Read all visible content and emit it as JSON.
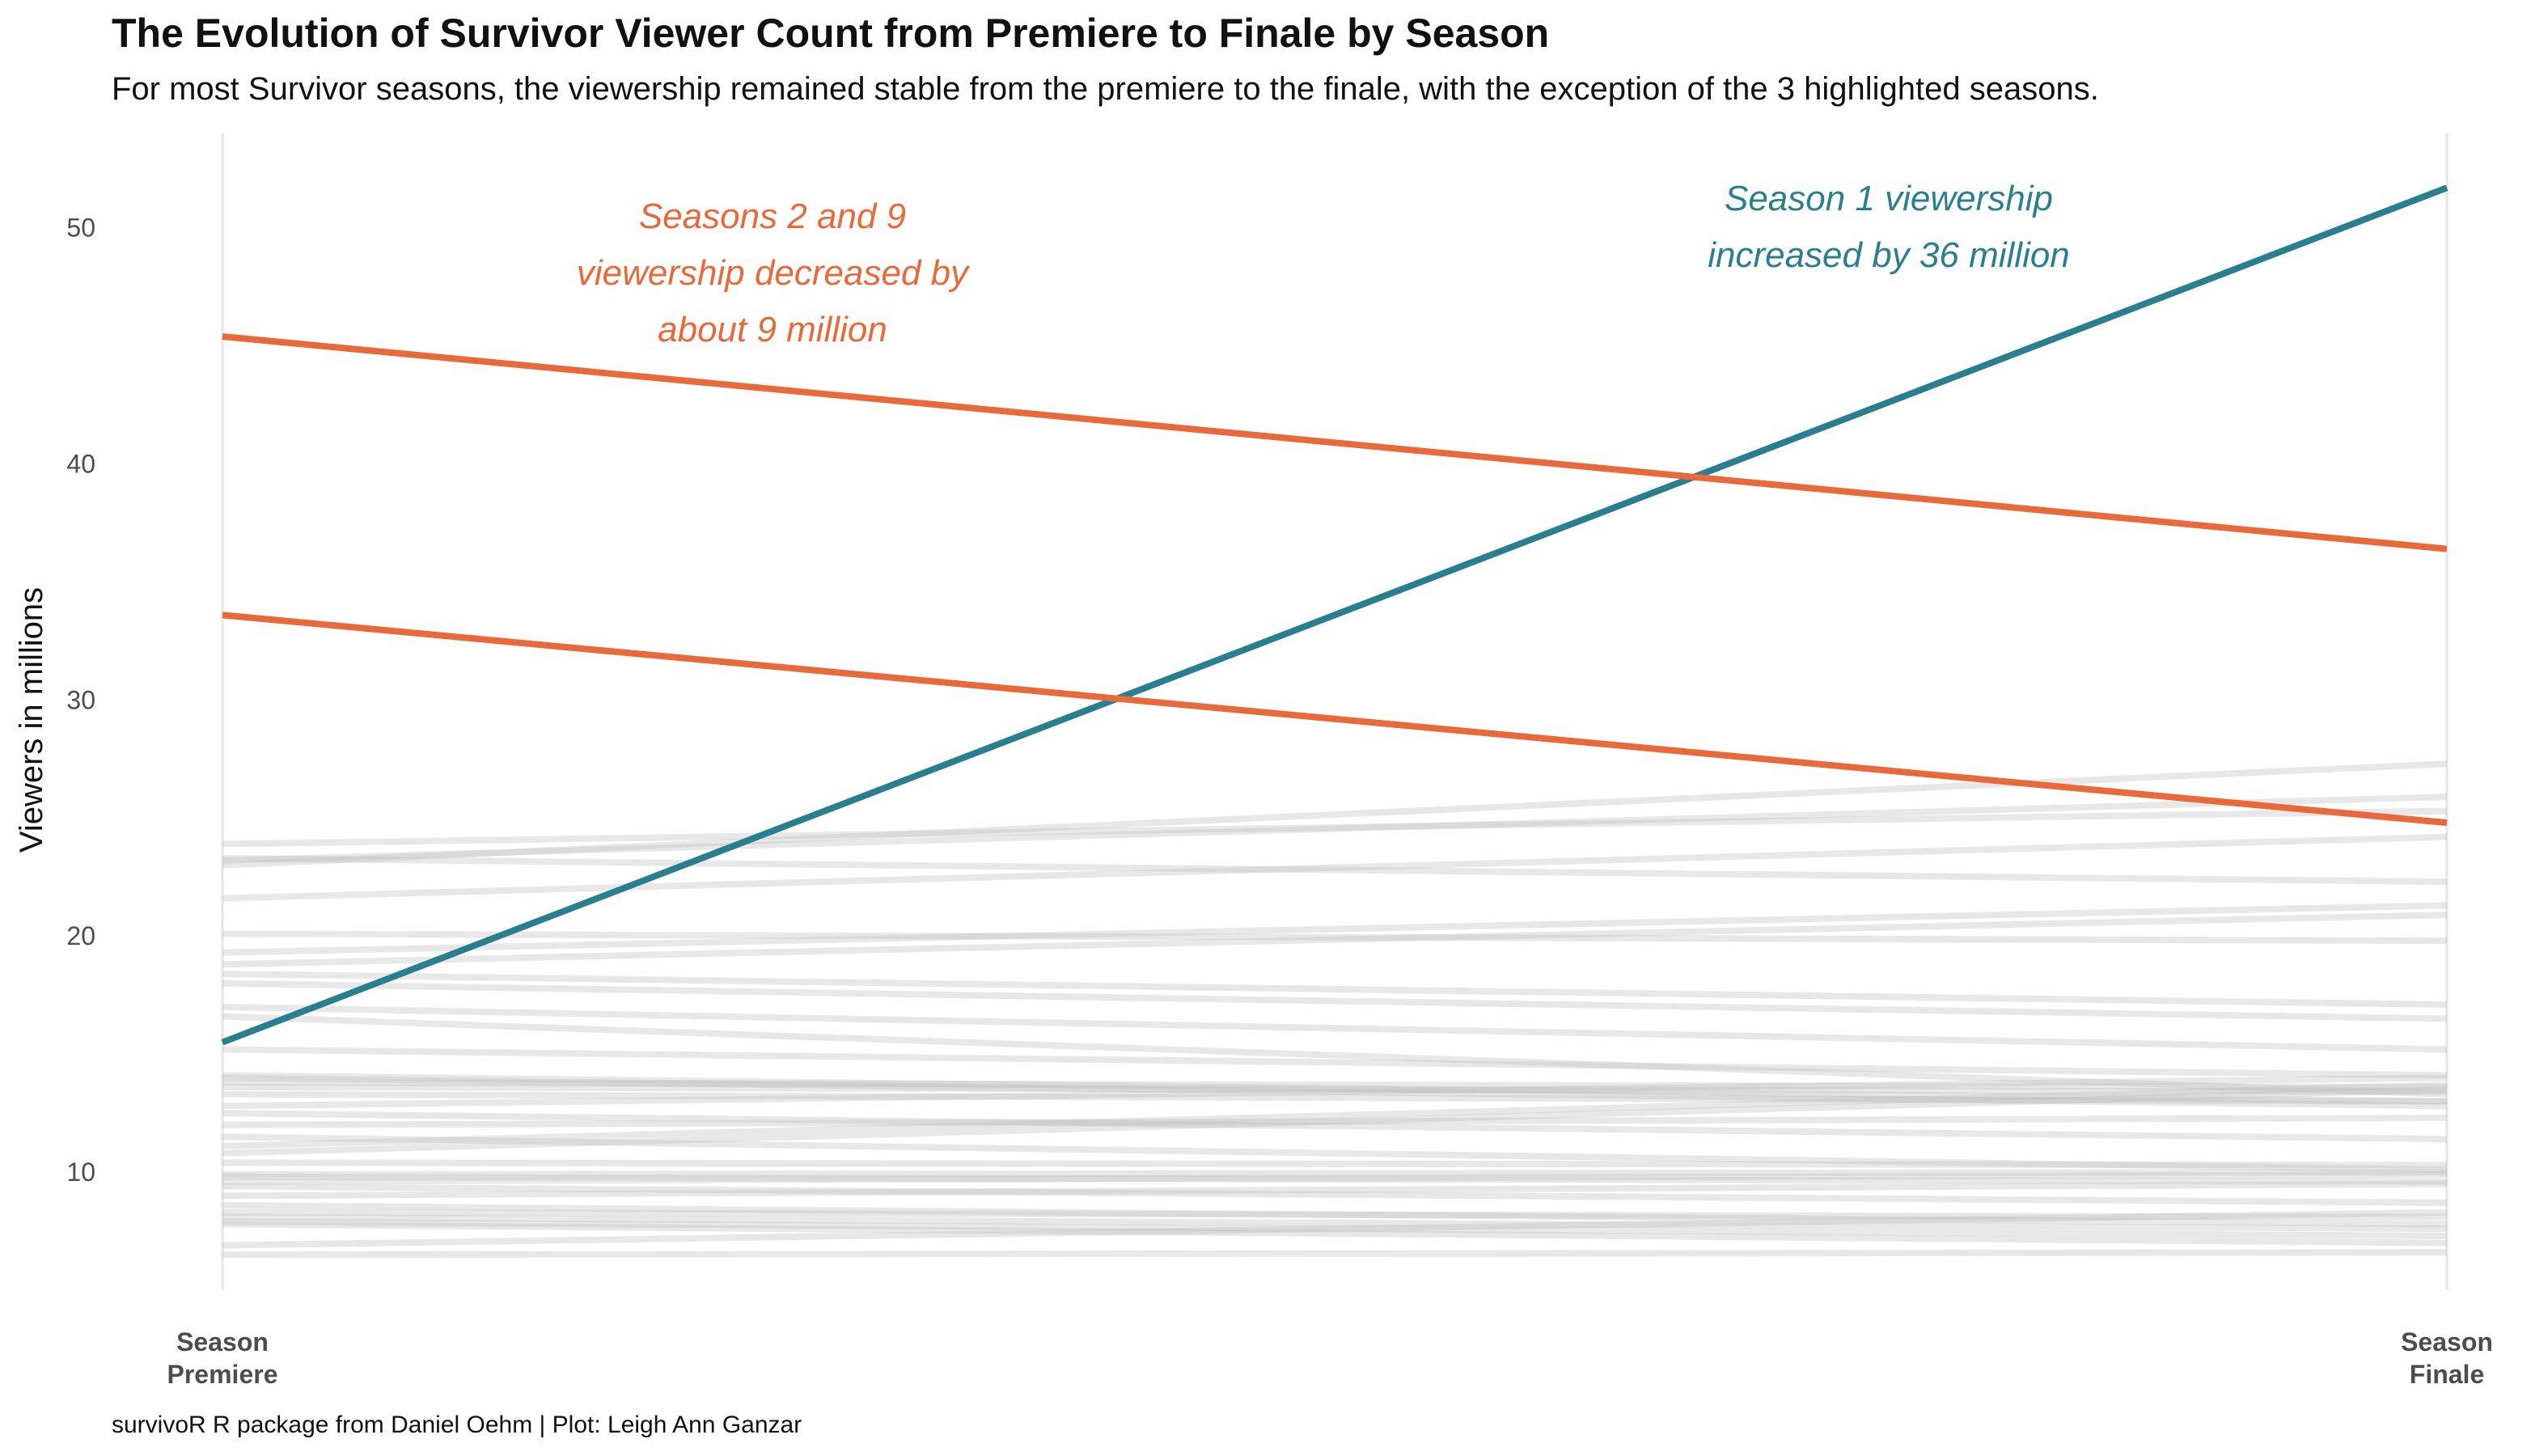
{
  "title": "The Evolution of Survivor Viewer Count from Premiere to Finale by Season",
  "subtitle": "For most Survivor seasons, the viewership remained stable from the premiere to the finale, with the exception of the 3 highlighted seasons.",
  "caption": "survivoR R package from Daniel Oehm | Plot: Leigh Ann Ganzar",
  "colors": {
    "highlight_decrease": "#E8693A",
    "highlight_increase": "#2A7F8E",
    "background_series": "#BEBEBE",
    "gridline": "#E6E6E6"
  },
  "chart_data": {
    "type": "line",
    "x": [
      "Season Premiere",
      "Season Finale"
    ],
    "x_tick_labels": [
      [
        "Season",
        "Premiere"
      ],
      [
        "Season",
        "Finale"
      ]
    ],
    "ylabel": "Viewers in millions",
    "ylim": [
      5,
      54
    ],
    "y_ticks": [
      10,
      20,
      30,
      40,
      50
    ],
    "grid": {
      "horizontal": false,
      "vertical": true
    },
    "highlighted_series": [
      {
        "values": [
          15.5,
          51.7
        ],
        "color": "#2A7F8E"
      },
      {
        "values": [
          45.4,
          36.4
        ],
        "color": "#E8693A"
      },
      {
        "values": [
          33.6,
          24.8
        ],
        "color": "#E8693A"
      }
    ],
    "background_series": [
      [
        23.9,
        25.3
      ],
      [
        23.3,
        22.3
      ],
      [
        23.2,
        25.9
      ],
      [
        23.0,
        27.3
      ],
      [
        21.6,
        24.2
      ],
      [
        20.1,
        19.8
      ],
      [
        19.3,
        21.3
      ],
      [
        18.8,
        20.9
      ],
      [
        18.4,
        17.1
      ],
      [
        18.0,
        16.5
      ],
      [
        17.0,
        15.2
      ],
      [
        16.6,
        13.3
      ],
      [
        15.2,
        14.1
      ],
      [
        14.1,
        13.0
      ],
      [
        14.0,
        12.8
      ],
      [
        13.8,
        13.6
      ],
      [
        13.6,
        13.4
      ],
      [
        13.3,
        13.0
      ],
      [
        12.8,
        14.0
      ],
      [
        12.5,
        11.4
      ],
      [
        12.0,
        12.3
      ],
      [
        11.5,
        10.1
      ],
      [
        11.1,
        13.7
      ],
      [
        10.8,
        13.5
      ],
      [
        10.4,
        10.3
      ],
      [
        9.9,
        10.0
      ],
      [
        9.8,
        9.6
      ],
      [
        9.6,
        9.9
      ],
      [
        9.4,
        8.7
      ],
      [
        9.0,
        9.5
      ],
      [
        8.6,
        7.8
      ],
      [
        8.3,
        8.1
      ],
      [
        8.1,
        7.6
      ],
      [
        7.9,
        7.3
      ],
      [
        7.8,
        7.0
      ],
      [
        6.9,
        8.3
      ],
      [
        6.5,
        6.6
      ]
    ],
    "annotations": [
      {
        "lines": [
          "Seasons 2 and 9",
          "viewership decreased by",
          "about 9 million"
        ],
        "color": "#E8693A"
      },
      {
        "lines": [
          "Season 1 viewership",
          "increased by 36 million"
        ],
        "color": "#2A7F8E"
      }
    ]
  }
}
